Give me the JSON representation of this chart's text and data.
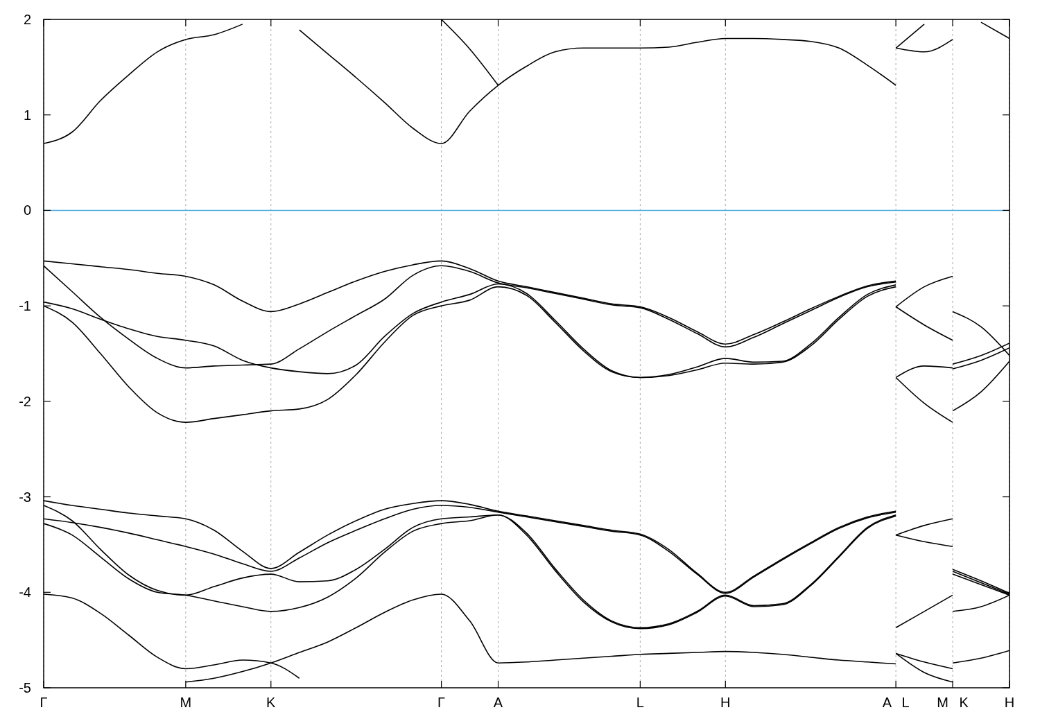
{
  "chart_data": {
    "type": "line",
    "ylim": [
      -5,
      2
    ],
    "categories": [
      "Γ",
      null,
      null,
      null,
      null,
      "M",
      null,
      null,
      "K",
      null,
      null,
      null,
      null,
      null,
      "Γ",
      null,
      "A",
      null,
      null,
      null,
      null,
      "L",
      null,
      null,
      "H",
      null,
      null,
      null,
      null,
      null,
      "A L",
      null,
      "M K",
      null,
      "H"
    ],
    "yticks": [
      -5,
      -4,
      -3,
      -2,
      -1,
      0,
      1,
      2
    ],
    "grid": "x",
    "ref_lines": [
      {
        "axis": "y",
        "value": 0,
        "color": "#4aa8e0"
      }
    ],
    "series": [
      {
        "color": "#000000",
        "values": [
          0.7,
          0.82,
          1.15,
          1.42,
          1.66,
          1.79,
          1.84,
          1.95,
          null,
          1.89,
          1.64,
          1.39,
          1.13,
          0.86,
          0.7,
          1.04,
          1.31,
          1.51,
          1.66,
          1.7,
          1.7,
          1.7,
          1.71,
          1.76,
          1.8,
          1.8,
          1.79,
          1.77,
          1.7,
          1.52,
          1.31,
          null,
          null,
          null,
          null
        ]
      },
      {
        "color": "#000000",
        "values": [
          null,
          null,
          null,
          null,
          null,
          null,
          null,
          null,
          null,
          null,
          null,
          null,
          null,
          null,
          null,
          null,
          null,
          null,
          null,
          null,
          null,
          null,
          null,
          null,
          null,
          null,
          null,
          null,
          null,
          null,
          1.7,
          1.66,
          1.79,
          null,
          null
        ]
      },
      {
        "color": "#000000",
        "values": [
          null,
          null,
          null,
          null,
          null,
          null,
          null,
          null,
          null,
          null,
          null,
          null,
          null,
          null,
          null,
          null,
          null,
          null,
          null,
          null,
          null,
          null,
          null,
          null,
          null,
          null,
          null,
          null,
          null,
          null,
          null,
          null,
          null,
          1.97,
          1.8
        ]
      },
      {
        "color": "#000000",
        "values": [
          null,
          null,
          null,
          null,
          null,
          null,
          null,
          null,
          null,
          null,
          null,
          null,
          null,
          null,
          2.0,
          1.69,
          1.31,
          null,
          null,
          null,
          null,
          null,
          null,
          null,
          null,
          null,
          null,
          null,
          null,
          null,
          null,
          null,
          null,
          null,
          null
        ]
      },
      {
        "color": "#000000",
        "values": [
          null,
          null,
          null,
          null,
          null,
          null,
          null,
          null,
          null,
          null,
          null,
          null,
          null,
          null,
          null,
          null,
          null,
          null,
          null,
          null,
          null,
          null,
          null,
          null,
          null,
          null,
          null,
          null,
          null,
          null,
          1.7,
          1.95,
          null,
          null,
          null
        ]
      },
      {
        "color": "#000000",
        "values": [
          -0.53,
          -0.56,
          -0.59,
          -0.62,
          -0.66,
          -0.69,
          -0.78,
          -0.95,
          -1.06,
          -0.98,
          -0.86,
          -0.74,
          -0.64,
          -0.57,
          -0.53,
          -0.61,
          -0.74,
          -0.8,
          -0.86,
          -0.92,
          -0.98,
          -1.01,
          -1.12,
          -1.27,
          -1.4,
          -1.3,
          -1.17,
          -1.03,
          -0.9,
          -0.79,
          -0.74,
          null,
          null,
          null,
          null
        ]
      },
      {
        "color": "#000000",
        "values": [
          null,
          null,
          null,
          null,
          null,
          null,
          null,
          null,
          null,
          null,
          null,
          null,
          null,
          null,
          null,
          null,
          null,
          null,
          null,
          null,
          null,
          null,
          null,
          null,
          null,
          null,
          null,
          null,
          null,
          null,
          -1.01,
          -0.8,
          -0.69,
          null,
          null
        ]
      },
      {
        "color": "#000000",
        "values": [
          null,
          null,
          null,
          null,
          null,
          null,
          null,
          null,
          null,
          null,
          null,
          null,
          null,
          null,
          null,
          null,
          null,
          null,
          null,
          null,
          null,
          null,
          null,
          null,
          null,
          null,
          null,
          null,
          null,
          null,
          null,
          null,
          -1.06,
          -1.22,
          -1.52
        ]
      },
      {
        "color": "#000000",
        "values": [
          -0.58,
          -0.85,
          -1.12,
          -1.35,
          -1.55,
          -1.65,
          -1.63,
          -1.62,
          -1.61,
          -1.45,
          -1.27,
          -1.1,
          -0.93,
          -0.68,
          -0.58,
          -0.64,
          -0.76,
          -0.81,
          -0.87,
          -0.93,
          -0.99,
          -1.02,
          -1.14,
          -1.29,
          -1.43,
          -1.33,
          -1.19,
          -1.05,
          -0.91,
          -0.8,
          -0.75,
          null,
          null,
          null,
          null
        ]
      },
      {
        "color": "#000000",
        "values": [
          null,
          null,
          null,
          null,
          null,
          null,
          null,
          null,
          null,
          null,
          null,
          null,
          null,
          null,
          null,
          null,
          null,
          null,
          null,
          null,
          null,
          null,
          null,
          null,
          null,
          null,
          null,
          null,
          null,
          null,
          -1.01,
          -1.2,
          -1.36,
          null,
          null
        ]
      },
      {
        "color": "#000000",
        "values": [
          null,
          null,
          null,
          null,
          null,
          null,
          null,
          null,
          null,
          null,
          null,
          null,
          null,
          null,
          null,
          null,
          null,
          null,
          null,
          null,
          null,
          null,
          null,
          null,
          null,
          null,
          null,
          null,
          null,
          null,
          null,
          null,
          -1.61,
          -1.52,
          -1.39
        ]
      },
      {
        "color": "#000000",
        "values": [
          -0.96,
          -1.03,
          -1.14,
          -1.24,
          -1.32,
          -1.36,
          -1.42,
          -1.57,
          -1.65,
          -1.69,
          -1.71,
          -1.62,
          -1.32,
          -1.08,
          -0.96,
          -0.88,
          -0.77,
          -0.87,
          -1.15,
          -1.45,
          -1.68,
          -1.75,
          -1.72,
          -1.64,
          -1.55,
          -1.59,
          -1.58,
          -1.4,
          -1.12,
          -0.88,
          -0.78,
          null,
          null,
          null,
          null
        ]
      },
      {
        "color": "#000000",
        "values": [
          null,
          null,
          null,
          null,
          null,
          null,
          null,
          null,
          null,
          null,
          null,
          null,
          null,
          null,
          null,
          null,
          null,
          null,
          null,
          null,
          null,
          null,
          null,
          null,
          null,
          null,
          null,
          null,
          null,
          null,
          -1.75,
          -1.63,
          -1.65,
          null,
          null
        ]
      },
      {
        "color": "#000000",
        "values": [
          null,
          null,
          null,
          null,
          null,
          null,
          null,
          null,
          null,
          null,
          null,
          null,
          null,
          null,
          null,
          null,
          null,
          null,
          null,
          null,
          null,
          null,
          null,
          null,
          null,
          null,
          null,
          null,
          null,
          null,
          null,
          null,
          -1.66,
          -1.57,
          -1.44
        ]
      },
      {
        "color": "#000000",
        "values": [
          -1.0,
          -1.17,
          -1.5,
          -1.85,
          -2.12,
          -2.22,
          -2.18,
          -2.14,
          -2.1,
          -2.08,
          -1.98,
          -1.72,
          -1.38,
          -1.1,
          -1.0,
          -0.94,
          -0.8,
          -0.89,
          -1.17,
          -1.47,
          -1.69,
          -1.75,
          -1.73,
          -1.67,
          -1.6,
          -1.61,
          -1.59,
          -1.42,
          -1.14,
          -0.9,
          -0.8,
          null,
          null,
          null,
          null
        ]
      },
      {
        "color": "#000000",
        "values": [
          null,
          null,
          null,
          null,
          null,
          null,
          null,
          null,
          null,
          null,
          null,
          null,
          null,
          null,
          null,
          null,
          null,
          null,
          null,
          null,
          null,
          null,
          null,
          null,
          null,
          null,
          null,
          null,
          null,
          null,
          -1.75,
          -2.02,
          -2.22,
          null,
          null
        ]
      },
      {
        "color": "#000000",
        "values": [
          null,
          null,
          null,
          null,
          null,
          null,
          null,
          null,
          null,
          null,
          null,
          null,
          null,
          null,
          null,
          null,
          null,
          null,
          null,
          null,
          null,
          null,
          null,
          null,
          null,
          null,
          null,
          null,
          null,
          null,
          null,
          null,
          -2.1,
          -1.9,
          -1.58
        ]
      },
      {
        "color": "#000000",
        "values": [
          -3.04,
          -3.09,
          -3.13,
          -3.17,
          -3.2,
          -3.23,
          -3.35,
          -3.57,
          -3.75,
          -3.58,
          -3.4,
          -3.25,
          -3.13,
          -3.07,
          -3.04,
          -3.08,
          -3.15,
          -3.2,
          -3.25,
          -3.3,
          -3.35,
          -3.39,
          -3.55,
          -3.8,
          -4.0,
          -3.83,
          -3.65,
          -3.48,
          -3.32,
          -3.21,
          -3.15,
          null,
          null,
          null,
          null
        ]
      },
      {
        "color": "#000000",
        "values": [
          null,
          null,
          null,
          null,
          null,
          null,
          null,
          null,
          null,
          null,
          null,
          null,
          null,
          null,
          null,
          null,
          null,
          null,
          null,
          null,
          null,
          null,
          null,
          null,
          null,
          null,
          null,
          null,
          null,
          null,
          -3.4,
          -3.3,
          -3.23,
          null,
          null
        ]
      },
      {
        "color": "#000000",
        "values": [
          null,
          null,
          null,
          null,
          null,
          null,
          null,
          null,
          null,
          null,
          null,
          null,
          null,
          null,
          null,
          null,
          null,
          null,
          null,
          null,
          null,
          null,
          null,
          null,
          null,
          null,
          null,
          null,
          null,
          null,
          null,
          null,
          -3.76,
          -3.88,
          -4.01
        ]
      },
      {
        "color": "#000000",
        "values": [
          -3.23,
          -3.27,
          -3.32,
          -3.38,
          -3.45,
          -3.52,
          -3.6,
          -3.7,
          -3.78,
          -3.64,
          -3.48,
          -3.35,
          -3.23,
          -3.13,
          -3.09,
          -3.11,
          -3.16,
          -3.21,
          -3.26,
          -3.31,
          -3.36,
          -3.4,
          -3.57,
          -3.81,
          -4.01,
          -3.84,
          -3.66,
          -3.49,
          -3.33,
          -3.22,
          -3.16,
          null,
          null,
          null,
          null
        ]
      },
      {
        "color": "#000000",
        "values": [
          null,
          null,
          null,
          null,
          null,
          null,
          null,
          null,
          null,
          null,
          null,
          null,
          null,
          null,
          null,
          null,
          null,
          null,
          null,
          null,
          null,
          null,
          null,
          null,
          null,
          null,
          null,
          null,
          null,
          null,
          -3.4,
          -3.47,
          -3.52,
          null,
          null
        ]
      },
      {
        "color": "#000000",
        "values": [
          null,
          null,
          null,
          null,
          null,
          null,
          null,
          null,
          null,
          null,
          null,
          null,
          null,
          null,
          null,
          null,
          null,
          null,
          null,
          null,
          null,
          null,
          null,
          null,
          null,
          null,
          null,
          null,
          null,
          null,
          null,
          null,
          -3.78,
          -3.9,
          -4.02
        ]
      },
      {
        "color": "#000000",
        "values": [
          -3.09,
          -3.25,
          -3.55,
          -3.82,
          -3.98,
          -4.03,
          -3.94,
          -3.85,
          -3.81,
          -3.89,
          -3.88,
          -3.76,
          -3.55,
          -3.32,
          -3.23,
          -3.21,
          -3.19,
          -3.38,
          -3.75,
          -4.08,
          -4.3,
          -4.37,
          -4.33,
          -4.2,
          -4.03,
          -4.14,
          -4.12,
          -3.92,
          -3.62,
          -3.32,
          -3.19,
          null,
          null,
          null,
          null
        ]
      },
      {
        "color": "#000000",
        "values": [
          null,
          null,
          null,
          null,
          null,
          null,
          null,
          null,
          null,
          null,
          null,
          null,
          null,
          null,
          null,
          null,
          null,
          null,
          null,
          null,
          null,
          null,
          null,
          null,
          null,
          null,
          null,
          null,
          null,
          null,
          -4.37,
          -4.2,
          -4.03,
          null,
          null
        ]
      },
      {
        "color": "#000000",
        "values": [
          null,
          null,
          null,
          null,
          null,
          null,
          null,
          null,
          null,
          null,
          null,
          null,
          null,
          null,
          null,
          null,
          null,
          null,
          null,
          null,
          null,
          null,
          null,
          null,
          null,
          null,
          null,
          null,
          null,
          null,
          null,
          null,
          -3.81,
          -3.92,
          -4.03
        ]
      },
      {
        "color": "#000000",
        "values": [
          -3.28,
          -3.4,
          -3.63,
          -3.86,
          -4.0,
          -4.03,
          -4.09,
          -4.15,
          -4.2,
          -4.16,
          -4.05,
          -3.85,
          -3.58,
          -3.36,
          -3.28,
          -3.25,
          -3.19,
          -3.4,
          -3.77,
          -4.1,
          -4.31,
          -4.38,
          -4.34,
          -4.21,
          -4.04,
          -4.15,
          -4.13,
          -3.93,
          -3.63,
          -3.33,
          -3.2,
          null,
          null,
          null,
          null
        ]
      },
      {
        "color": "#000000",
        "values": [
          null,
          null,
          null,
          null,
          null,
          null,
          null,
          null,
          null,
          null,
          null,
          null,
          null,
          null,
          null,
          null,
          null,
          null,
          null,
          null,
          null,
          null,
          null,
          null,
          null,
          null,
          null,
          null,
          null,
          null,
          null,
          null,
          -4.2,
          -4.15,
          -4.03
        ]
      },
      {
        "color": "#000000",
        "values": [
          -4.02,
          -4.06,
          -4.22,
          -4.45,
          -4.68,
          -4.8,
          -4.76,
          -4.71,
          -4.74,
          -4.9,
          null,
          null,
          null,
          null,
          null,
          null,
          null,
          null,
          null,
          null,
          null,
          null,
          null,
          null,
          null,
          null,
          null,
          null,
          null,
          null,
          null,
          null,
          null,
          null,
          null
        ]
      },
      {
        "color": "#000000",
        "values": [
          null,
          null,
          null,
          null,
          null,
          -4.94,
          -4.9,
          -4.83,
          -4.74,
          -4.63,
          -4.52,
          -4.37,
          -4.21,
          -4.08,
          -4.02,
          -4.3,
          -4.74,
          -4.73,
          -4.71,
          -4.69,
          -4.67,
          -4.65,
          -4.64,
          -4.63,
          -4.62,
          -4.63,
          -4.65,
          -4.68,
          -4.71,
          -4.73,
          -4.75,
          null,
          null,
          null,
          null
        ]
      },
      {
        "color": "#000000",
        "values": [
          null,
          null,
          null,
          null,
          null,
          null,
          null,
          null,
          null,
          null,
          null,
          null,
          null,
          null,
          null,
          null,
          null,
          null,
          null,
          null,
          null,
          null,
          null,
          null,
          null,
          null,
          null,
          null,
          null,
          null,
          -4.64,
          -4.73,
          -4.8,
          null,
          null
        ]
      },
      {
        "color": "#000000",
        "values": [
          null,
          null,
          null,
          null,
          null,
          null,
          null,
          null,
          null,
          null,
          null,
          null,
          null,
          null,
          null,
          null,
          null,
          null,
          null,
          null,
          null,
          null,
          null,
          null,
          null,
          null,
          null,
          null,
          null,
          null,
          null,
          null,
          -4.74,
          -4.69,
          -4.61
        ]
      },
      {
        "color": "#000000",
        "values": [
          null,
          null,
          null,
          null,
          null,
          null,
          null,
          null,
          null,
          null,
          null,
          null,
          null,
          null,
          null,
          null,
          null,
          null,
          null,
          null,
          null,
          null,
          null,
          null,
          null,
          null,
          null,
          null,
          null,
          null,
          -4.64,
          -4.84,
          -4.94,
          null,
          null
        ]
      }
    ]
  }
}
